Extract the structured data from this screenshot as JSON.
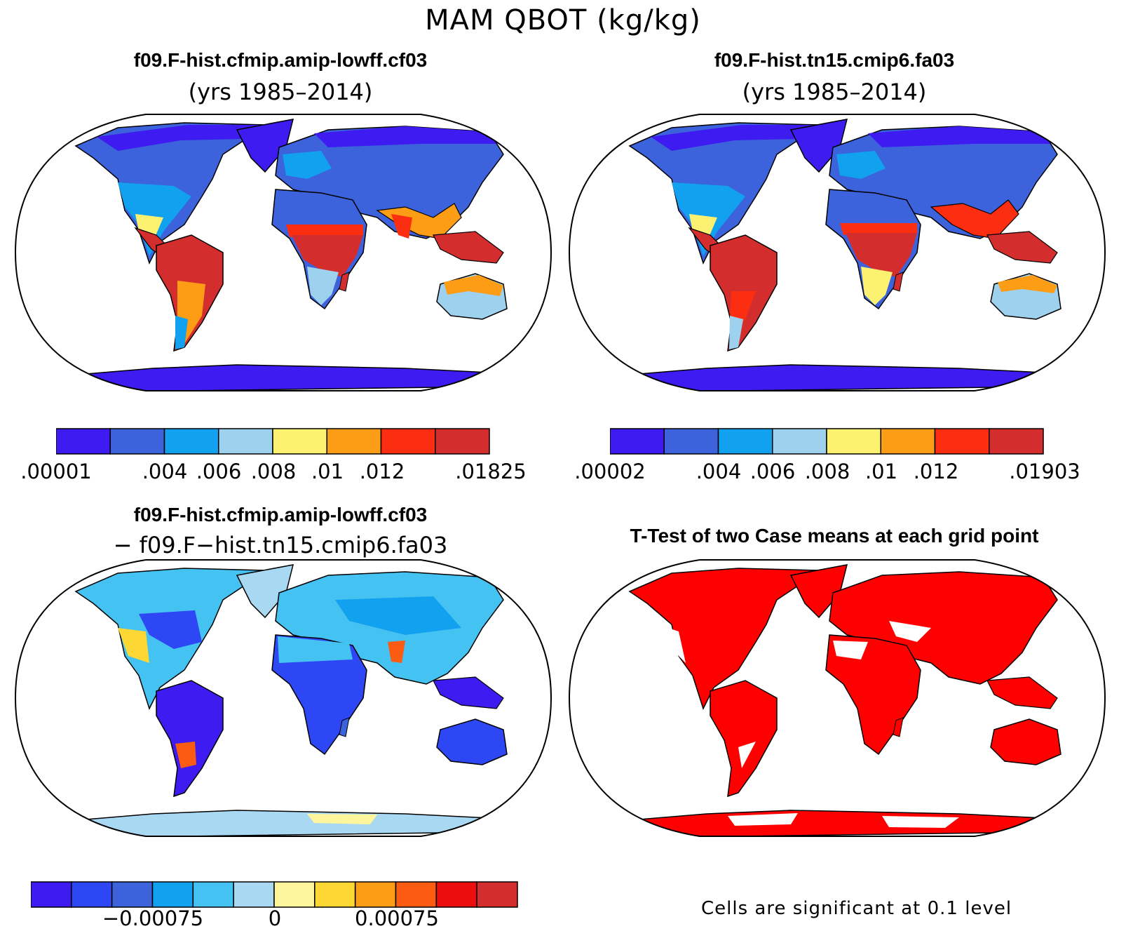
{
  "title": "MAM QBOT (kg/kg)",
  "colors": {
    "abs": [
      "#3e1bf0",
      "#3c62dc",
      "#12a1ef",
      "#9ed1ee",
      "#fdf172",
      "#fd9d16",
      "#fc2e12",
      "#d42d2d"
    ],
    "diff": [
      "#3e1bf0",
      "#2e47f4",
      "#3c62dc",
      "#12a1ef",
      "#44c2f2",
      "#a9d9f2",
      "#fff59d",
      "#fdd734",
      "#fd9d16",
      "#fc5b12",
      "#ea0e0e",
      "#d42d2d"
    ],
    "significance": "#ff0000",
    "outline": "#000000"
  },
  "panels": [
    {
      "id": "case1",
      "title": "f09.F-hist.cfmip.amip-lowff.cf03",
      "subtitle": "(yrs 1985–2014)",
      "colorbar_labels": [
        ".00001",
        ".004",
        ".006",
        ".008",
        ".01",
        ".012",
        ".01825"
      ]
    },
    {
      "id": "case2",
      "title": "f09.F-hist.tn15.cmip6.fa03",
      "subtitle": "(yrs 1985–2014)",
      "colorbar_labels": [
        ".00002",
        ".004",
        ".006",
        ".008",
        ".01",
        ".012",
        ".01903"
      ]
    },
    {
      "id": "difference",
      "title": "f09.F-hist.cfmip.amip-lowff.cf03",
      "subtitle": "− f09.F−hist.tn15.cmip6.fa03",
      "colorbar_labels": [
        "−0.00075",
        "0",
        "0.00075"
      ]
    },
    {
      "id": "ttest",
      "title": "T-Test of two Case means at each grid point",
      "note": "Cells are significant at 0.1 level"
    }
  ]
}
